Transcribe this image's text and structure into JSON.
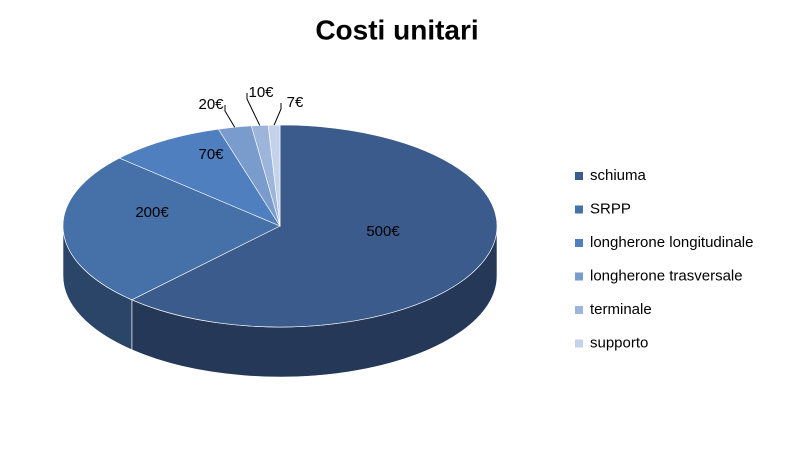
{
  "chart_data": {
    "type": "pie",
    "title": "Costi unitari",
    "categories": [
      "schiuma",
      "SRPP",
      "longherone longitudinale",
      "longherone trasversale",
      "terminale",
      "supporto"
    ],
    "values": [
      500,
      200,
      70,
      20,
      10,
      7
    ],
    "value_labels": [
      "500€",
      "200€",
      "70€",
      "20€",
      "10€",
      "7€"
    ],
    "colors": [
      "#3b5b8c",
      "#4670a8",
      "#4f7fbf",
      "#7a9ccc",
      "#9db5da",
      "#c5d3ea"
    ],
    "legend": "right"
  }
}
